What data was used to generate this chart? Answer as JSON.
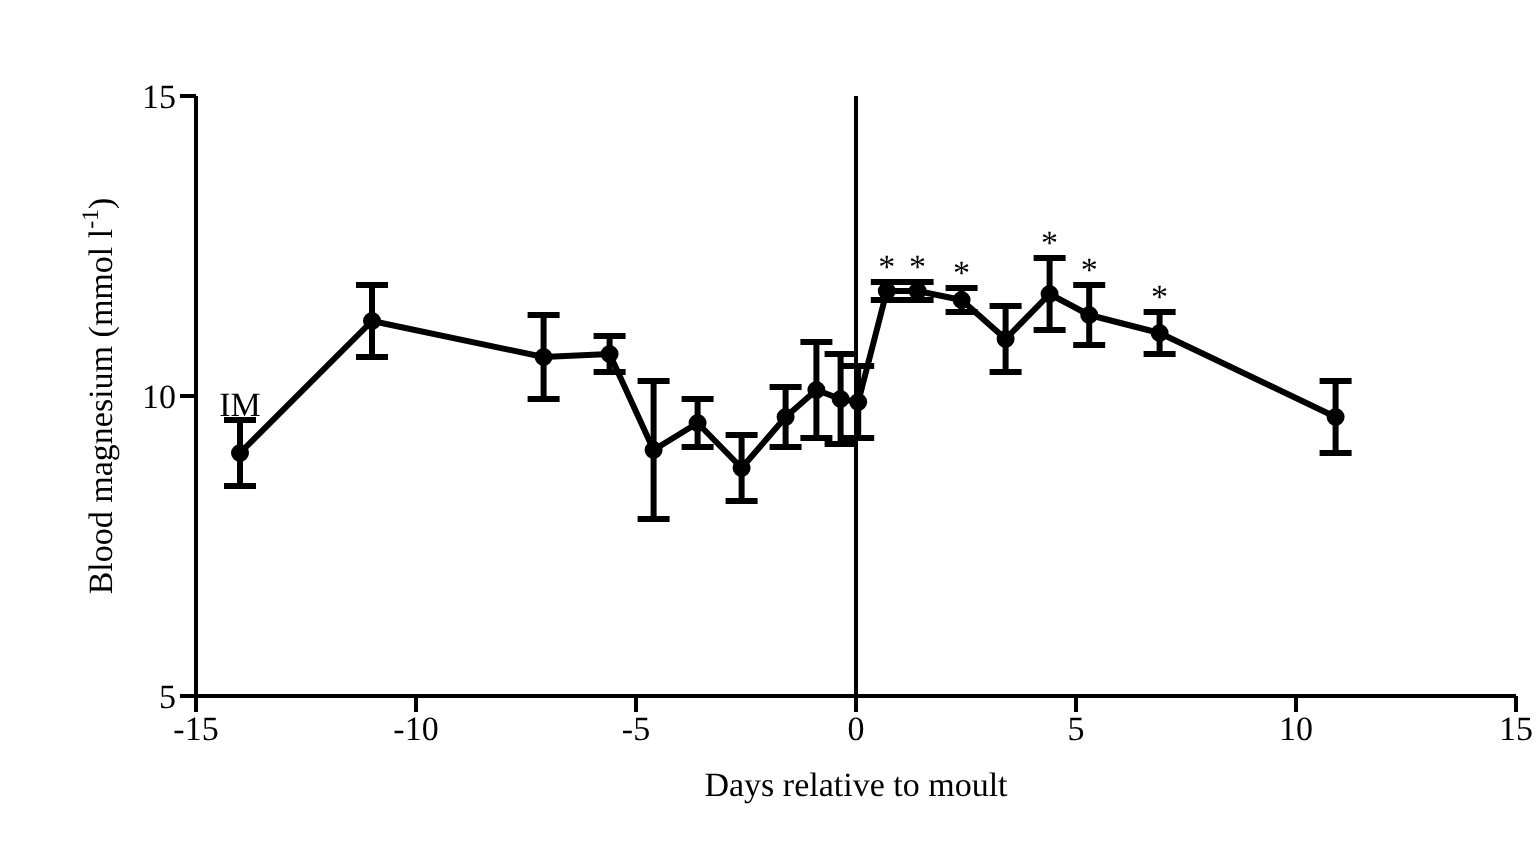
{
  "chart_data": {
    "type": "line",
    "xlabel": "Days relative to moult",
    "ylabel": "Blood magnesium (mmol l$^{-1}$)",
    "x": [
      -14,
      -11,
      -7.1,
      -5.6,
      -4.6,
      -3.6,
      -2.6,
      -1.6,
      -0.9,
      -0.35,
      0.05,
      0.7,
      1.4,
      2.4,
      3.4,
      4.4,
      5.3,
      6.9,
      10.9
    ],
    "series": [
      {
        "color": "#000000",
        "values": [
          9.05,
          11.25,
          10.65,
          10.7,
          9.1,
          9.55,
          8.8,
          9.65,
          10.1,
          9.95,
          9.9,
          11.75,
          11.75,
          11.6,
          10.95,
          11.7,
          11.35,
          11.05,
          9.65
        ],
        "errors": [
          0.55,
          0.6,
          0.7,
          0.3,
          1.15,
          0.4,
          0.55,
          0.5,
          0.8,
          0.75,
          0.6,
          0.15,
          0.15,
          0.2,
          0.55,
          0.6,
          0.5,
          0.35,
          0.6
        ]
      }
    ],
    "xlim": [
      -15,
      15
    ],
    "xticks": [
      -15,
      -10,
      -5,
      0,
      5,
      10,
      15
    ],
    "ylim": [
      5,
      15
    ],
    "yticks": [
      5,
      10,
      15
    ],
    "ref_lines": [
      {
        "axis": "x",
        "value": 0,
        "color": "#000000"
      }
    ],
    "marker": "circle",
    "line_style": "solid",
    "grid": false,
    "legend": false,
    "annotations": [
      {
        "text": "IM",
        "x": -14,
        "y": 9.6
      },
      {
        "text": "*",
        "x": 0.7,
        "y": 11.9
      },
      {
        "text": "*",
        "x": 1.4,
        "y": 11.9
      },
      {
        "text": "*",
        "x": 2.4,
        "y": 11.8
      },
      {
        "text": "*",
        "x": 4.4,
        "y": 12.3
      },
      {
        "text": "*",
        "x": 5.3,
        "y": 11.85
      },
      {
        "text": "*",
        "x": 6.9,
        "y": 11.4
      }
    ]
  }
}
